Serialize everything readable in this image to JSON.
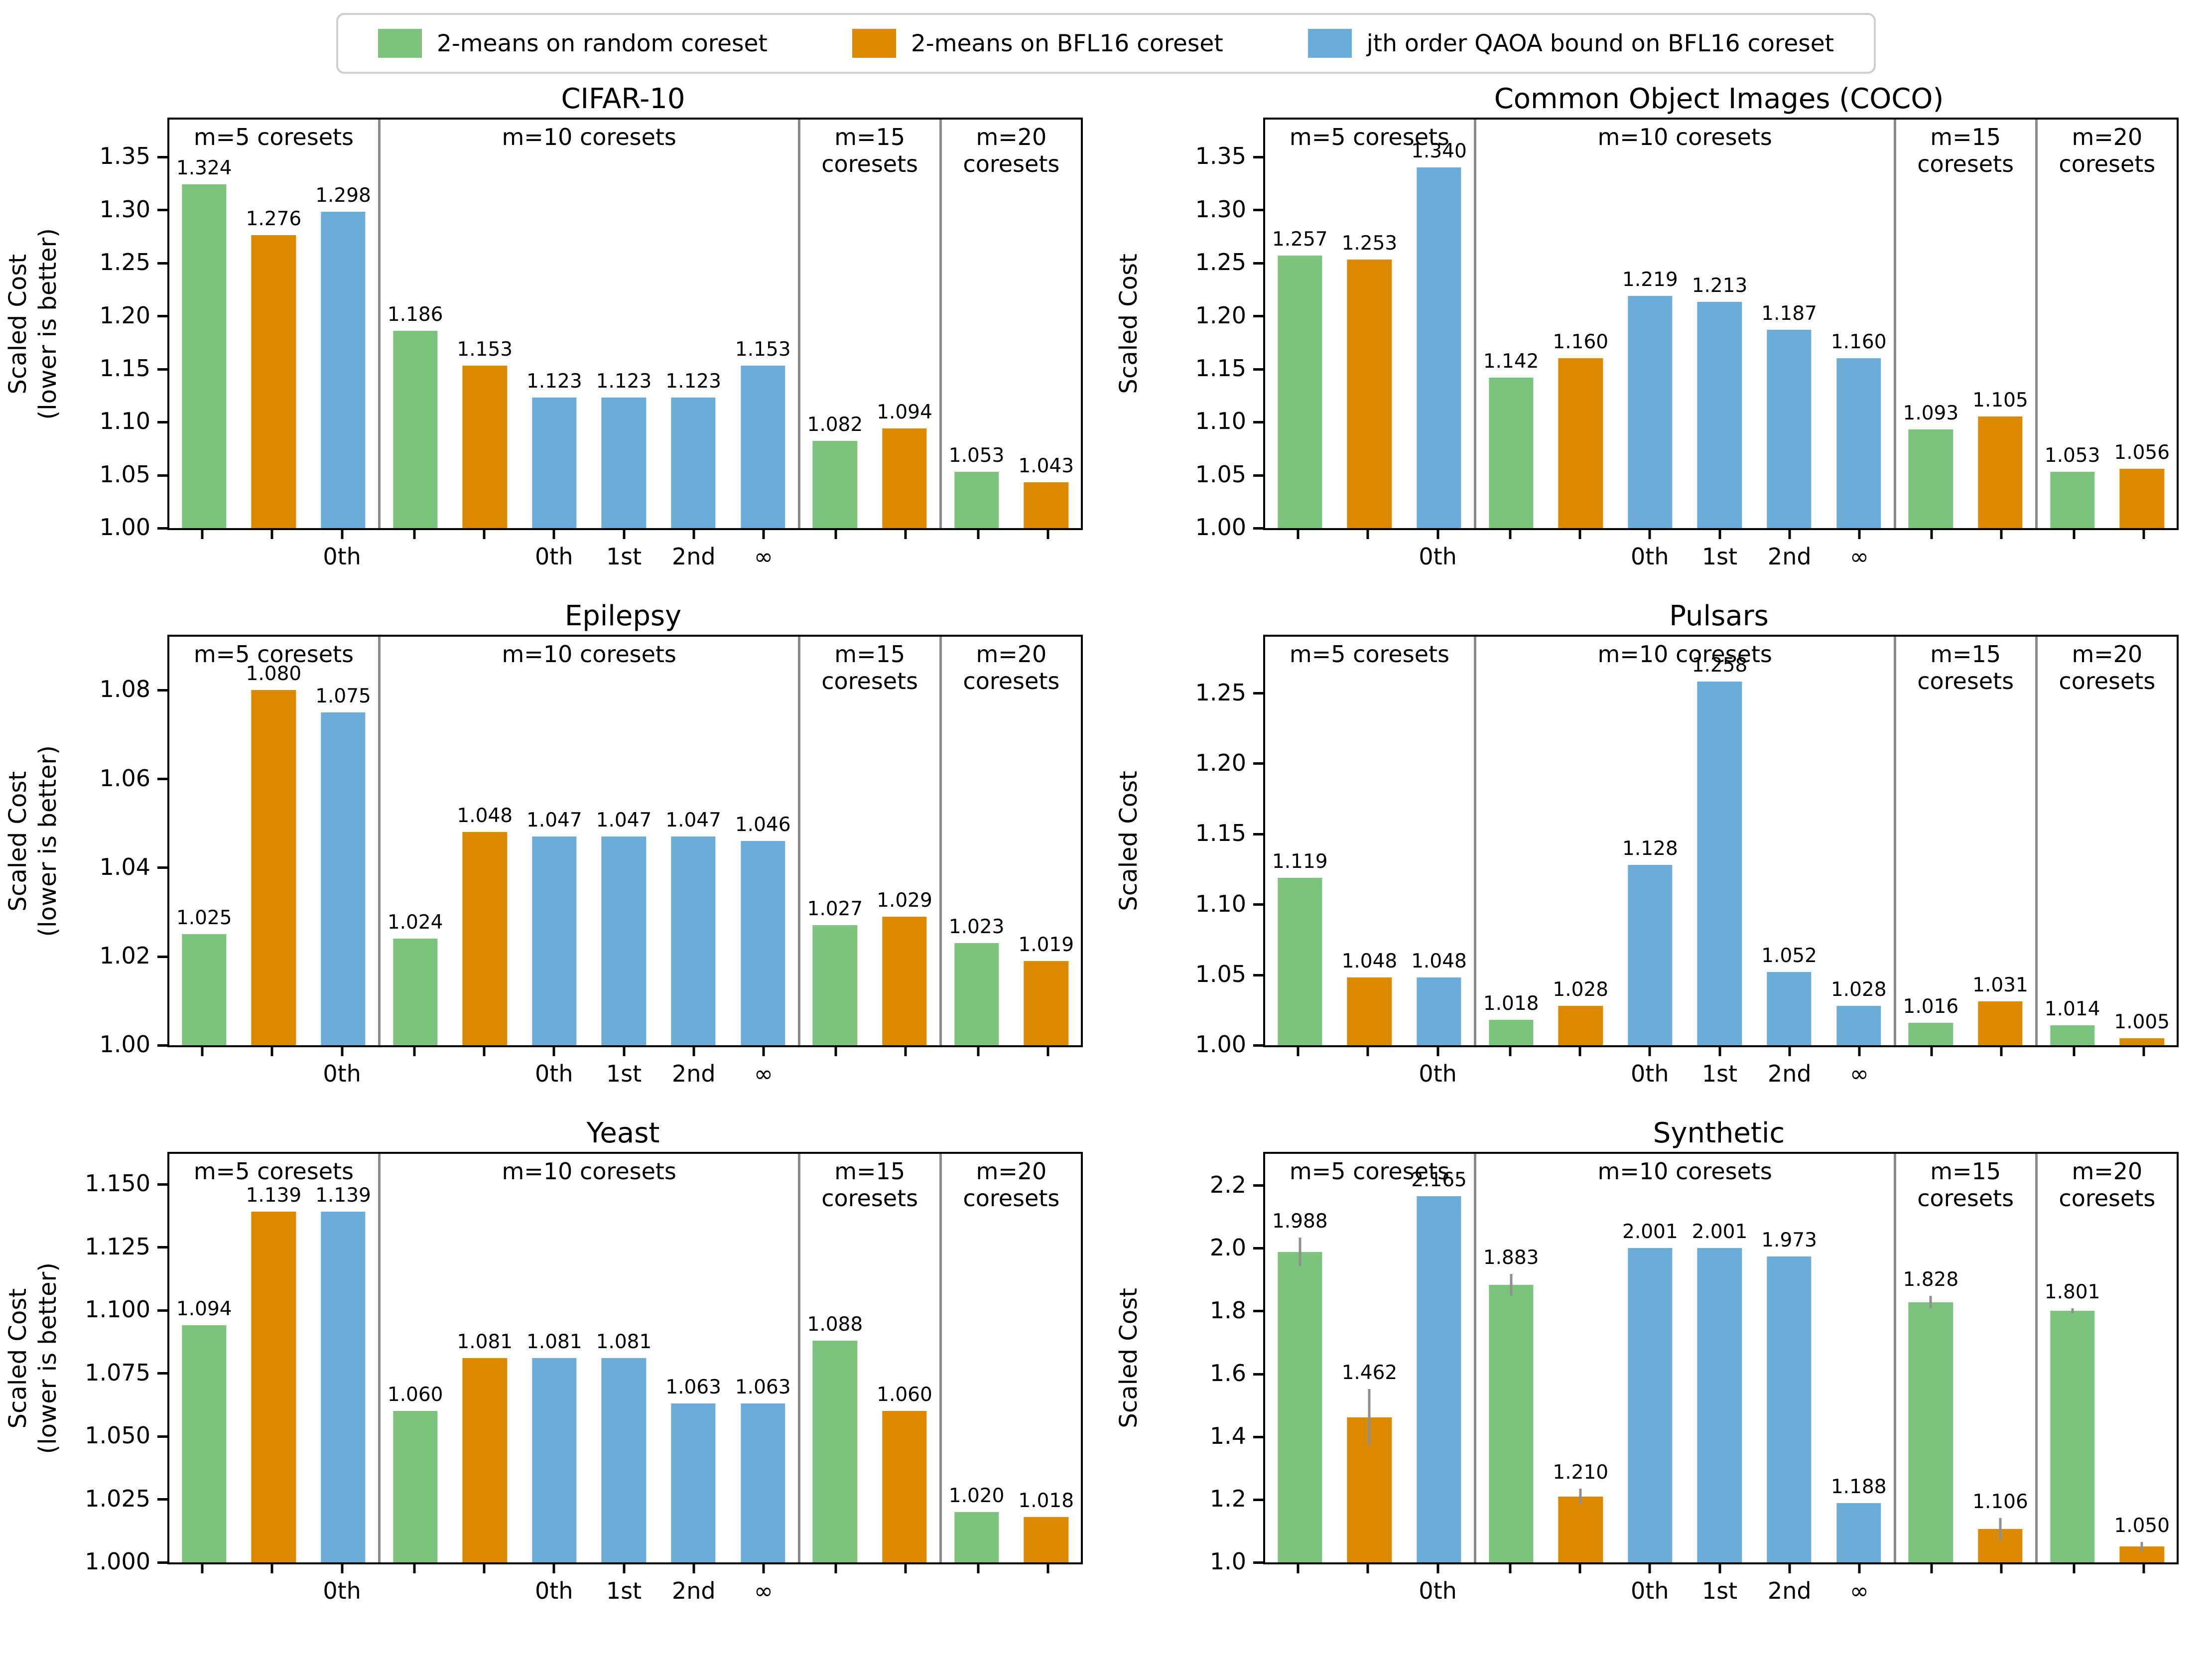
{
  "legend": {
    "items": [
      {
        "series": "random",
        "label": "2-means on random coreset",
        "color": "#7cc47c"
      },
      {
        "series": "bfl16",
        "label": "2-means on BFL16 coreset",
        "color": "#dd8900"
      },
      {
        "series": "qaoa",
        "label": "jth order QAOA bound on BFL16 coreset",
        "color": "#6cacd8"
      }
    ]
  },
  "colors": {
    "random": "#7cc47c",
    "bfl16": "#dd8900",
    "qaoa": "#6cacd8",
    "divider": "#8a8a8a",
    "errorbar": "#8f8f8f",
    "axis": "#000000"
  },
  "chart_data": [
    {
      "id": "cifar-10",
      "type": "bar",
      "title": "CIFAR-10",
      "ylabel": "Scaled Cost\n(lower is better)",
      "ylim": [
        1.0,
        1.385
      ],
      "yticks": [
        {
          "v": 1.0,
          "label": "1.00"
        },
        {
          "v": 1.05,
          "label": "1.05"
        },
        {
          "v": 1.1,
          "label": "1.10"
        },
        {
          "v": 1.15,
          "label": "1.15"
        },
        {
          "v": 1.2,
          "label": "1.20"
        },
        {
          "v": 1.25,
          "label": "1.25"
        },
        {
          "v": 1.3,
          "label": "1.30"
        },
        {
          "v": 1.35,
          "label": "1.35"
        }
      ],
      "groups": [
        {
          "header": "m=5 coresets",
          "bars": [
            {
              "series": "random",
              "value": 1.324,
              "label": "1.324",
              "tick": ""
            },
            {
              "series": "bfl16",
              "value": 1.276,
              "label": "1.276",
              "tick": ""
            },
            {
              "series": "qaoa",
              "value": 1.298,
              "label": "1.298",
              "tick": "0th"
            }
          ]
        },
        {
          "header": "m=10 coresets",
          "bars": [
            {
              "series": "random",
              "value": 1.186,
              "label": "1.186",
              "tick": ""
            },
            {
              "series": "bfl16",
              "value": 1.153,
              "label": "1.153",
              "tick": ""
            },
            {
              "series": "qaoa",
              "value": 1.123,
              "label": "1.123",
              "tick": "0th"
            },
            {
              "series": "qaoa",
              "value": 1.123,
              "label": "1.123",
              "tick": "1st"
            },
            {
              "series": "qaoa",
              "value": 1.123,
              "label": "1.123",
              "tick": "2nd"
            },
            {
              "series": "qaoa",
              "value": 1.153,
              "label": "1.153",
              "tick": "∞"
            }
          ]
        },
        {
          "header": "m=15\ncoresets",
          "bars": [
            {
              "series": "random",
              "value": 1.082,
              "label": "1.082",
              "tick": ""
            },
            {
              "series": "bfl16",
              "value": 1.094,
              "label": "1.094",
              "tick": ""
            }
          ]
        },
        {
          "header": "m=20\ncoresets",
          "bars": [
            {
              "series": "random",
              "value": 1.053,
              "label": "1.053",
              "tick": ""
            },
            {
              "series": "bfl16",
              "value": 1.043,
              "label": "1.043",
              "tick": ""
            }
          ]
        }
      ]
    },
    {
      "id": "coco",
      "type": "bar",
      "title": "Common Object Images (COCO)",
      "ylabel": "Scaled Cost",
      "ylim": [
        1.0,
        1.385
      ],
      "yticks": [
        {
          "v": 1.0,
          "label": "1.00"
        },
        {
          "v": 1.05,
          "label": "1.05"
        },
        {
          "v": 1.1,
          "label": "1.10"
        },
        {
          "v": 1.15,
          "label": "1.15"
        },
        {
          "v": 1.2,
          "label": "1.20"
        },
        {
          "v": 1.25,
          "label": "1.25"
        },
        {
          "v": 1.3,
          "label": "1.30"
        },
        {
          "v": 1.35,
          "label": "1.35"
        }
      ],
      "groups": [
        {
          "header": "m=5 coresets",
          "bars": [
            {
              "series": "random",
              "value": 1.257,
              "label": "1.257",
              "tick": ""
            },
            {
              "series": "bfl16",
              "value": 1.253,
              "label": "1.253",
              "tick": ""
            },
            {
              "series": "qaoa",
              "value": 1.34,
              "label": "1.340",
              "tick": "0th"
            }
          ]
        },
        {
          "header": "m=10 coresets",
          "bars": [
            {
              "series": "random",
              "value": 1.142,
              "label": "1.142",
              "tick": ""
            },
            {
              "series": "bfl16",
              "value": 1.16,
              "label": "1.160",
              "tick": ""
            },
            {
              "series": "qaoa",
              "value": 1.219,
              "label": "1.219",
              "tick": "0th"
            },
            {
              "series": "qaoa",
              "value": 1.213,
              "label": "1.213",
              "tick": "1st"
            },
            {
              "series": "qaoa",
              "value": 1.187,
              "label": "1.187",
              "tick": "2nd"
            },
            {
              "series": "qaoa",
              "value": 1.16,
              "label": "1.160",
              "tick": "∞"
            }
          ]
        },
        {
          "header": "m=15\ncoresets",
          "bars": [
            {
              "series": "random",
              "value": 1.093,
              "label": "1.093",
              "tick": ""
            },
            {
              "series": "bfl16",
              "value": 1.105,
              "label": "1.105",
              "tick": ""
            }
          ]
        },
        {
          "header": "m=20\ncoresets",
          "bars": [
            {
              "series": "random",
              "value": 1.053,
              "label": "1.053",
              "tick": ""
            },
            {
              "series": "bfl16",
              "value": 1.056,
              "label": "1.056",
              "tick": ""
            }
          ]
        }
      ]
    },
    {
      "id": "epilepsy",
      "type": "bar",
      "title": "Epilepsy",
      "ylabel": "Scaled Cost\n(lower is better)",
      "ylim": [
        1.0,
        1.092
      ],
      "yticks": [
        {
          "v": 1.0,
          "label": "1.00"
        },
        {
          "v": 1.02,
          "label": "1.02"
        },
        {
          "v": 1.04,
          "label": "1.04"
        },
        {
          "v": 1.06,
          "label": "1.06"
        },
        {
          "v": 1.08,
          "label": "1.08"
        }
      ],
      "groups": [
        {
          "header": "m=5 coresets",
          "bars": [
            {
              "series": "random",
              "value": 1.025,
              "label": "1.025",
              "tick": ""
            },
            {
              "series": "bfl16",
              "value": 1.08,
              "label": "1.080",
              "tick": ""
            },
            {
              "series": "qaoa",
              "value": 1.075,
              "label": "1.075",
              "tick": "0th"
            }
          ]
        },
        {
          "header": "m=10 coresets",
          "bars": [
            {
              "series": "random",
              "value": 1.024,
              "label": "1.024",
              "tick": ""
            },
            {
              "series": "bfl16",
              "value": 1.048,
              "label": "1.048",
              "tick": ""
            },
            {
              "series": "qaoa",
              "value": 1.047,
              "label": "1.047",
              "tick": "0th"
            },
            {
              "series": "qaoa",
              "value": 1.047,
              "label": "1.047",
              "tick": "1st"
            },
            {
              "series": "qaoa",
              "value": 1.047,
              "label": "1.047",
              "tick": "2nd"
            },
            {
              "series": "qaoa",
              "value": 1.046,
              "label": "1.046",
              "tick": "∞"
            }
          ]
        },
        {
          "header": "m=15\ncoresets",
          "bars": [
            {
              "series": "random",
              "value": 1.027,
              "label": "1.027",
              "tick": ""
            },
            {
              "series": "bfl16",
              "value": 1.029,
              "label": "1.029",
              "tick": ""
            }
          ]
        },
        {
          "header": "m=20\ncoresets",
          "bars": [
            {
              "series": "random",
              "value": 1.023,
              "label": "1.023",
              "tick": ""
            },
            {
              "series": "bfl16",
              "value": 1.019,
              "label": "1.019",
              "tick": ""
            }
          ]
        }
      ]
    },
    {
      "id": "pulsars",
      "type": "bar",
      "title": "Pulsars",
      "ylabel": "Scaled Cost",
      "ylim": [
        1.0,
        1.29
      ],
      "yticks": [
        {
          "v": 1.0,
          "label": "1.00"
        },
        {
          "v": 1.05,
          "label": "1.05"
        },
        {
          "v": 1.1,
          "label": "1.10"
        },
        {
          "v": 1.15,
          "label": "1.15"
        },
        {
          "v": 1.2,
          "label": "1.20"
        },
        {
          "v": 1.25,
          "label": "1.25"
        }
      ],
      "groups": [
        {
          "header": "m=5 coresets",
          "bars": [
            {
              "series": "random",
              "value": 1.119,
              "label": "1.119",
              "tick": ""
            },
            {
              "series": "bfl16",
              "value": 1.048,
              "label": "1.048",
              "tick": ""
            },
            {
              "series": "qaoa",
              "value": 1.048,
              "label": "1.048",
              "tick": "0th"
            }
          ]
        },
        {
          "header": "m=10 coresets",
          "bars": [
            {
              "series": "random",
              "value": 1.018,
              "label": "1.018",
              "tick": ""
            },
            {
              "series": "bfl16",
              "value": 1.028,
              "label": "1.028",
              "tick": ""
            },
            {
              "series": "qaoa",
              "value": 1.128,
              "label": "1.128",
              "tick": "0th"
            },
            {
              "series": "qaoa",
              "value": 1.258,
              "label": "1.258",
              "tick": "1st"
            },
            {
              "series": "qaoa",
              "value": 1.052,
              "label": "1.052",
              "tick": "2nd"
            },
            {
              "series": "qaoa",
              "value": 1.028,
              "label": "1.028",
              "tick": "∞"
            }
          ]
        },
        {
          "header": "m=15\ncoresets",
          "bars": [
            {
              "series": "random",
              "value": 1.016,
              "label": "1.016",
              "tick": ""
            },
            {
              "series": "bfl16",
              "value": 1.031,
              "label": "1.031",
              "tick": ""
            }
          ]
        },
        {
          "header": "m=20\ncoresets",
          "bars": [
            {
              "series": "random",
              "value": 1.014,
              "label": "1.014",
              "tick": ""
            },
            {
              "series": "bfl16",
              "value": 1.005,
              "label": "1.005",
              "tick": ""
            }
          ]
        }
      ]
    },
    {
      "id": "yeast",
      "type": "bar",
      "title": "Yeast",
      "ylabel": "Scaled Cost\n(lower is better)",
      "ylim": [
        1.0,
        1.162
      ],
      "yticks": [
        {
          "v": 1.0,
          "label": "1.000"
        },
        {
          "v": 1.025,
          "label": "1.025"
        },
        {
          "v": 1.05,
          "label": "1.050"
        },
        {
          "v": 1.075,
          "label": "1.075"
        },
        {
          "v": 1.1,
          "label": "1.100"
        },
        {
          "v": 1.125,
          "label": "1.125"
        },
        {
          "v": 1.15,
          "label": "1.150"
        }
      ],
      "groups": [
        {
          "header": "m=5 coresets",
          "bars": [
            {
              "series": "random",
              "value": 1.094,
              "label": "1.094",
              "tick": ""
            },
            {
              "series": "bfl16",
              "value": 1.139,
              "label": "1.139",
              "tick": ""
            },
            {
              "series": "qaoa",
              "value": 1.139,
              "label": "1.139",
              "tick": "0th"
            }
          ]
        },
        {
          "header": "m=10 coresets",
          "bars": [
            {
              "series": "random",
              "value": 1.06,
              "label": "1.060",
              "tick": ""
            },
            {
              "series": "bfl16",
              "value": 1.081,
              "label": "1.081",
              "tick": ""
            },
            {
              "series": "qaoa",
              "value": 1.081,
              "label": "1.081",
              "tick": "0th"
            },
            {
              "series": "qaoa",
              "value": 1.081,
              "label": "1.081",
              "tick": "1st"
            },
            {
              "series": "qaoa",
              "value": 1.063,
              "label": "1.063",
              "tick": "2nd"
            },
            {
              "series": "qaoa",
              "value": 1.063,
              "label": "1.063",
              "tick": "∞"
            }
          ]
        },
        {
          "header": "m=15\ncoresets",
          "bars": [
            {
              "series": "random",
              "value": 1.088,
              "label": "1.088",
              "tick": ""
            },
            {
              "series": "bfl16",
              "value": 1.06,
              "label": "1.060",
              "tick": ""
            }
          ]
        },
        {
          "header": "m=20\ncoresets",
          "bars": [
            {
              "series": "random",
              "value": 1.02,
              "label": "1.020",
              "tick": ""
            },
            {
              "series": "bfl16",
              "value": 1.018,
              "label": "1.018",
              "tick": ""
            }
          ]
        }
      ]
    },
    {
      "id": "synthetic",
      "type": "bar",
      "title": "Synthetic",
      "ylabel": "Scaled Cost",
      "ylim": [
        1.0,
        2.3
      ],
      "yticks": [
        {
          "v": 1.0,
          "label": "1.0"
        },
        {
          "v": 1.2,
          "label": "1.2"
        },
        {
          "v": 1.4,
          "label": "1.4"
        },
        {
          "v": 1.6,
          "label": "1.6"
        },
        {
          "v": 1.8,
          "label": "1.8"
        },
        {
          "v": 2.0,
          "label": "2.0"
        },
        {
          "v": 2.2,
          "label": "2.2"
        }
      ],
      "groups": [
        {
          "header": "m=5 coresets",
          "bars": [
            {
              "series": "random",
              "value": 1.988,
              "label": "1.988",
              "tick": "",
              "err": 0.045
            },
            {
              "series": "bfl16",
              "value": 1.462,
              "label": "1.462",
              "tick": "",
              "err": 0.09
            },
            {
              "series": "qaoa",
              "value": 2.165,
              "label": "2.165",
              "tick": "0th"
            }
          ]
        },
        {
          "header": "m=10 coresets",
          "bars": [
            {
              "series": "random",
              "value": 1.883,
              "label": "1.883",
              "tick": "",
              "err": 0.035
            },
            {
              "series": "bfl16",
              "value": 1.21,
              "label": "1.210",
              "tick": "",
              "err": 0.025
            },
            {
              "series": "qaoa",
              "value": 2.001,
              "label": "2.001",
              "tick": "0th"
            },
            {
              "series": "qaoa",
              "value": 2.001,
              "label": "2.001",
              "tick": "1st"
            },
            {
              "series": "qaoa",
              "value": 1.973,
              "label": "1.973",
              "tick": "2nd"
            },
            {
              "series": "qaoa",
              "value": 1.188,
              "label": "1.188",
              "tick": "∞"
            }
          ]
        },
        {
          "header": "m=15\ncoresets",
          "bars": [
            {
              "series": "random",
              "value": 1.828,
              "label": "1.828",
              "tick": "",
              "err": 0.02
            },
            {
              "series": "bfl16",
              "value": 1.106,
              "label": "1.106",
              "tick": "",
              "err": 0.035
            }
          ]
        },
        {
          "header": "m=20\ncoresets",
          "bars": [
            {
              "series": "random",
              "value": 1.801,
              "label": "1.801",
              "tick": "",
              "err": 0.008
            },
            {
              "series": "bfl16",
              "value": 1.05,
              "label": "1.050",
              "tick": "",
              "err": 0.015
            }
          ]
        }
      ]
    }
  ]
}
